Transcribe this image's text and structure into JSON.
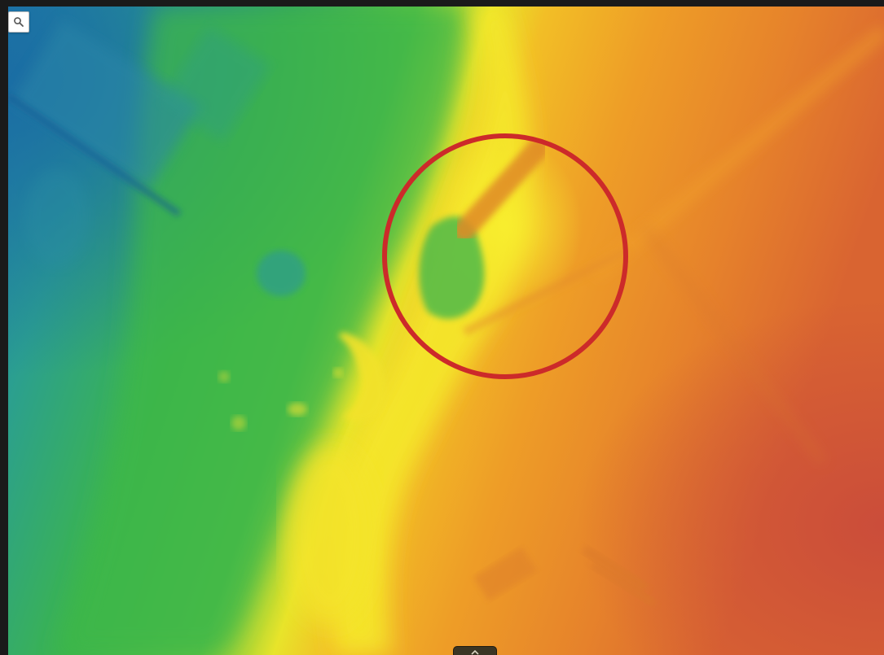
{
  "viewer": {
    "view_type": "elevation raster (digital elevation model)",
    "colormap": [
      "#1f6fa8",
      "#2a9a8a",
      "#3fb54e",
      "#8fcf3a",
      "#f5e82a",
      "#f0a324",
      "#e27a2a",
      "#c9483a"
    ],
    "highlight_color": "#cc2a2a"
  },
  "toolbar": {
    "zoom_icon": "magnifier-icon"
  },
  "panel_toggle": {
    "icon": "chevron-up-icon"
  }
}
